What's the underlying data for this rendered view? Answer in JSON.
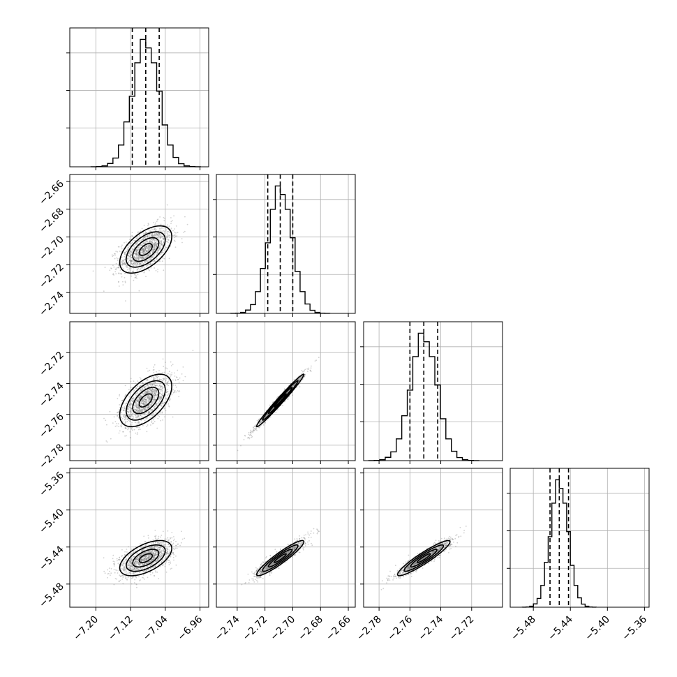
{
  "chart_data": {
    "type": "scatter",
    "subtype": "corner-plot",
    "title": "",
    "grid": true,
    "parameters": [
      {
        "xlim": [
          -7.26,
          -6.94
        ],
        "ylim": [
          -7.26,
          -6.94
        ],
        "ticks": [
          -7.2,
          -7.12,
          -7.04,
          -6.96
        ],
        "tick_labels": [
          "−7.20",
          "−7.12",
          "−7.04",
          "−6.96"
        ],
        "mean": -7.085,
        "sd": 0.03,
        "quantiles": [
          -7.116,
          -7.085,
          -7.054
        ]
      },
      {
        "xlim": [
          -2.755,
          -2.655
        ],
        "ylim": [
          -2.755,
          -2.655
        ],
        "ticks": [
          -2.74,
          -2.72,
          -2.7,
          -2.68,
          -2.66
        ],
        "tick_labels": [
          "−2.74",
          "−2.72",
          "−2.70",
          "−2.68",
          "−2.66"
        ],
        "mean": -2.709,
        "sd": 0.0085,
        "quantiles": [
          -2.718,
          -2.709,
          -2.7
        ]
      },
      {
        "xlim": [
          -2.79,
          -2.7
        ],
        "ylim": [
          -2.79,
          -2.7
        ],
        "ticks": [
          -2.78,
          -2.76,
          -2.74,
          -2.72
        ],
        "tick_labels": [
          "−2.78",
          "−2.76",
          "−2.74",
          "−2.72"
        ],
        "mean": -2.751,
        "sd": 0.0085,
        "quantiles": [
          -2.76,
          -2.751,
          -2.742
        ]
      },
      {
        "xlim": [
          -5.505,
          -5.355
        ],
        "ylim": [
          -5.505,
          -5.355
        ],
        "ticks": [
          -5.48,
          -5.44,
          -5.4,
          -5.36
        ],
        "tick_labels": [
          "−5.48",
          "−5.44",
          "−5.40",
          "−5.36"
        ],
        "mean": -5.452,
        "sd": 0.0095,
        "quantiles": [
          -5.462,
          -5.452,
          -5.442
        ]
      }
    ],
    "correlations": [
      [
        1.0,
        0.55,
        0.55,
        0.55
      ],
      [
        0.55,
        1.0,
        0.985,
        0.93
      ],
      [
        0.55,
        0.985,
        1.0,
        0.93
      ],
      [
        0.55,
        0.93,
        0.93,
        1.0
      ]
    ],
    "histogram_bins": 20,
    "contour_levels_sigma": [
      0.5,
      1.0,
      1.5,
      2.0
    ],
    "colors": {
      "points": "#7a7a7a",
      "lines": "#000000",
      "grid": "#b0b0b0"
    }
  }
}
